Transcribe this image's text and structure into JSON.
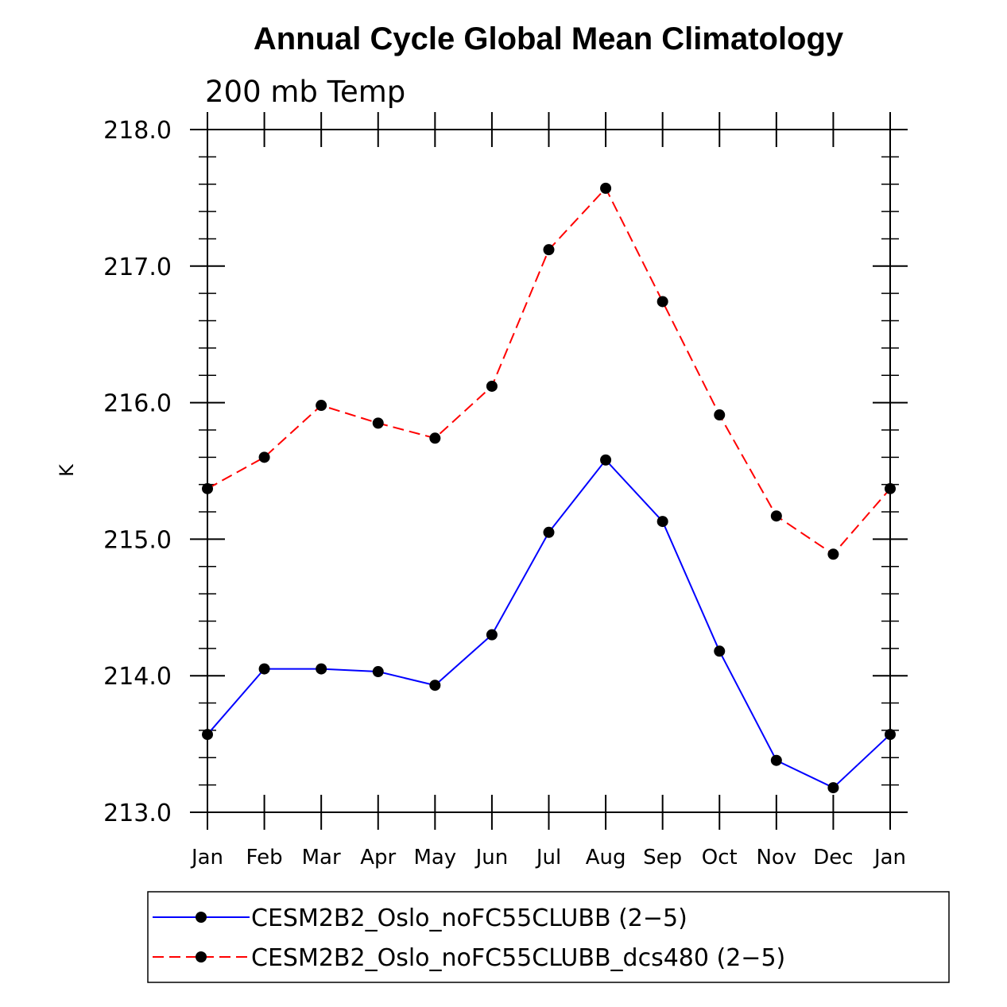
{
  "chart_data": {
    "type": "line",
    "title": "Annual Cycle Global Mean Climatology",
    "subtitle": "200 mb Temp",
    "ylabel": "K",
    "xlabel": "",
    "ylim": [
      213.0,
      218.0
    ],
    "yticks": [
      213.0,
      214.0,
      215.0,
      216.0,
      217.0,
      218.0
    ],
    "ytick_labels": [
      "213.0",
      "214.0",
      "215.0",
      "216.0",
      "217.0",
      "218.0"
    ],
    "categories": [
      "Jan",
      "Feb",
      "Mar",
      "Apr",
      "May",
      "Jun",
      "Jul",
      "Aug",
      "Sep",
      "Oct",
      "Nov",
      "Dec",
      "Jan"
    ],
    "series": [
      {
        "name": "CESM2B2_Oslo_noFC55CLUBB (2−5)",
        "color": "#0000ff",
        "style": "solid",
        "marker": "circle",
        "values": [
          213.57,
          214.05,
          214.05,
          214.03,
          213.93,
          214.3,
          215.05,
          215.58,
          215.13,
          214.18,
          213.38,
          213.18,
          213.57
        ]
      },
      {
        "name": "CESM2B2_Oslo_noFC55CLUBB_dcs480 (2−5)",
        "color": "#ff0000",
        "style": "dashed",
        "marker": "circle",
        "values": [
          215.37,
          215.6,
          215.98,
          215.85,
          215.74,
          216.12,
          217.12,
          217.57,
          216.74,
          215.91,
          215.17,
          214.89,
          215.37
        ]
      }
    ],
    "legend_position": "bottom"
  }
}
